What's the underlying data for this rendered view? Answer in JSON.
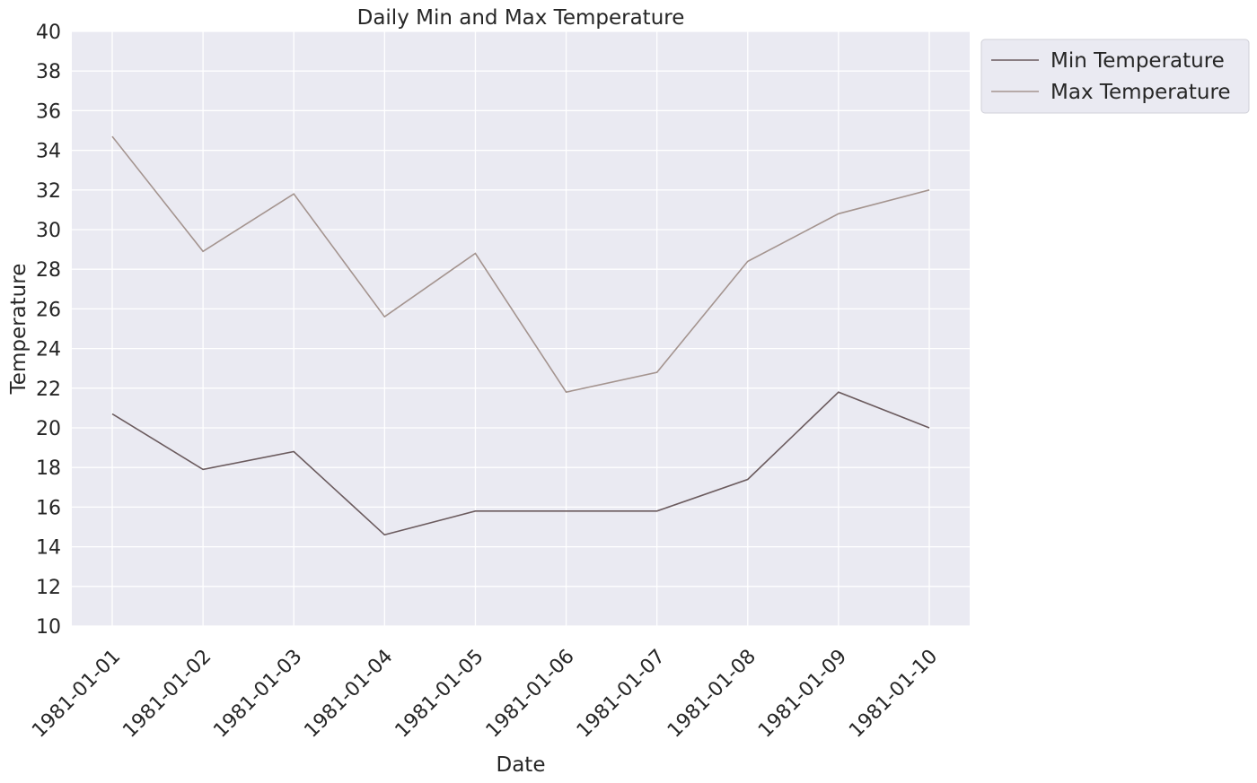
{
  "chart_data": {
    "type": "line",
    "title": "Daily Min and Max Temperature",
    "xlabel": "Date",
    "ylabel": "Temperature",
    "x": [
      "1981-01-01",
      "1981-01-02",
      "1981-01-03",
      "1981-01-04",
      "1981-01-05",
      "1981-01-06",
      "1981-01-07",
      "1981-01-08",
      "1981-01-09",
      "1981-01-10"
    ],
    "ylim": [
      10,
      40
    ],
    "yticks": [
      10,
      12,
      14,
      16,
      18,
      20,
      22,
      24,
      26,
      28,
      30,
      32,
      34,
      36,
      38,
      40
    ],
    "grid": true,
    "legend_position": "outside-top-right",
    "series": [
      {
        "name": "Min Temperature",
        "color": "#6b5b5e",
        "values": [
          20.7,
          17.9,
          18.8,
          14.6,
          15.8,
          15.8,
          15.8,
          17.4,
          21.8,
          20.0
        ]
      },
      {
        "name": "Max Temperature",
        "color": "#a4948f",
        "values": [
          34.7,
          28.9,
          31.8,
          25.6,
          28.8,
          21.8,
          22.8,
          28.4,
          30.8,
          32.0
        ]
      }
    ]
  },
  "colors": {
    "plot_background": "#eaeaf2",
    "grid": "#ffffff"
  }
}
